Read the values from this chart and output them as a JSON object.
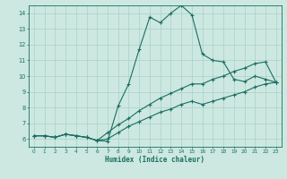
{
  "xlabel": "Humidex (Indice chaleur)",
  "ylabel": "",
  "xlim": [
    -0.5,
    23.5
  ],
  "ylim": [
    5.5,
    14.5
  ],
  "xticks": [
    0,
    1,
    2,
    3,
    4,
    5,
    6,
    7,
    8,
    9,
    10,
    11,
    12,
    13,
    14,
    15,
    16,
    17,
    18,
    19,
    20,
    21,
    22,
    23
  ],
  "yticks": [
    6,
    7,
    8,
    9,
    10,
    11,
    12,
    13,
    14
  ],
  "background_color": "#cce8e0",
  "line_color": "#1a6e62",
  "grid_color": "#aad0c8",
  "line1_x": [
    0,
    1,
    2,
    3,
    4,
    5,
    6,
    7,
    8,
    9,
    10,
    11,
    12,
    13,
    14,
    15,
    16,
    17,
    18,
    19,
    20,
    21,
    22,
    23
  ],
  "line1_y": [
    6.2,
    6.2,
    6.1,
    6.3,
    6.2,
    6.1,
    5.9,
    5.85,
    8.1,
    9.5,
    11.7,
    13.75,
    13.4,
    14.0,
    14.5,
    13.9,
    11.4,
    11.0,
    10.9,
    9.8,
    9.65,
    10.0,
    9.8,
    9.6
  ],
  "line2_x": [
    0,
    1,
    2,
    3,
    4,
    5,
    6,
    7,
    8,
    9,
    10,
    11,
    12,
    13,
    14,
    15,
    16,
    17,
    18,
    19,
    20,
    21,
    22,
    23
  ],
  "line2_y": [
    6.2,
    6.2,
    6.1,
    6.3,
    6.2,
    6.1,
    5.9,
    6.4,
    6.9,
    7.3,
    7.8,
    8.2,
    8.6,
    8.9,
    9.2,
    9.5,
    9.5,
    9.8,
    10.0,
    10.3,
    10.5,
    10.8,
    10.9,
    9.6
  ],
  "line3_x": [
    0,
    1,
    2,
    3,
    4,
    5,
    6,
    7,
    8,
    9,
    10,
    11,
    12,
    13,
    14,
    15,
    16,
    17,
    18,
    19,
    20,
    21,
    22,
    23
  ],
  "line3_y": [
    6.2,
    6.2,
    6.1,
    6.3,
    6.2,
    6.1,
    5.9,
    6.0,
    6.4,
    6.8,
    7.1,
    7.4,
    7.7,
    7.9,
    8.2,
    8.4,
    8.2,
    8.4,
    8.6,
    8.8,
    9.0,
    9.3,
    9.5,
    9.6
  ]
}
